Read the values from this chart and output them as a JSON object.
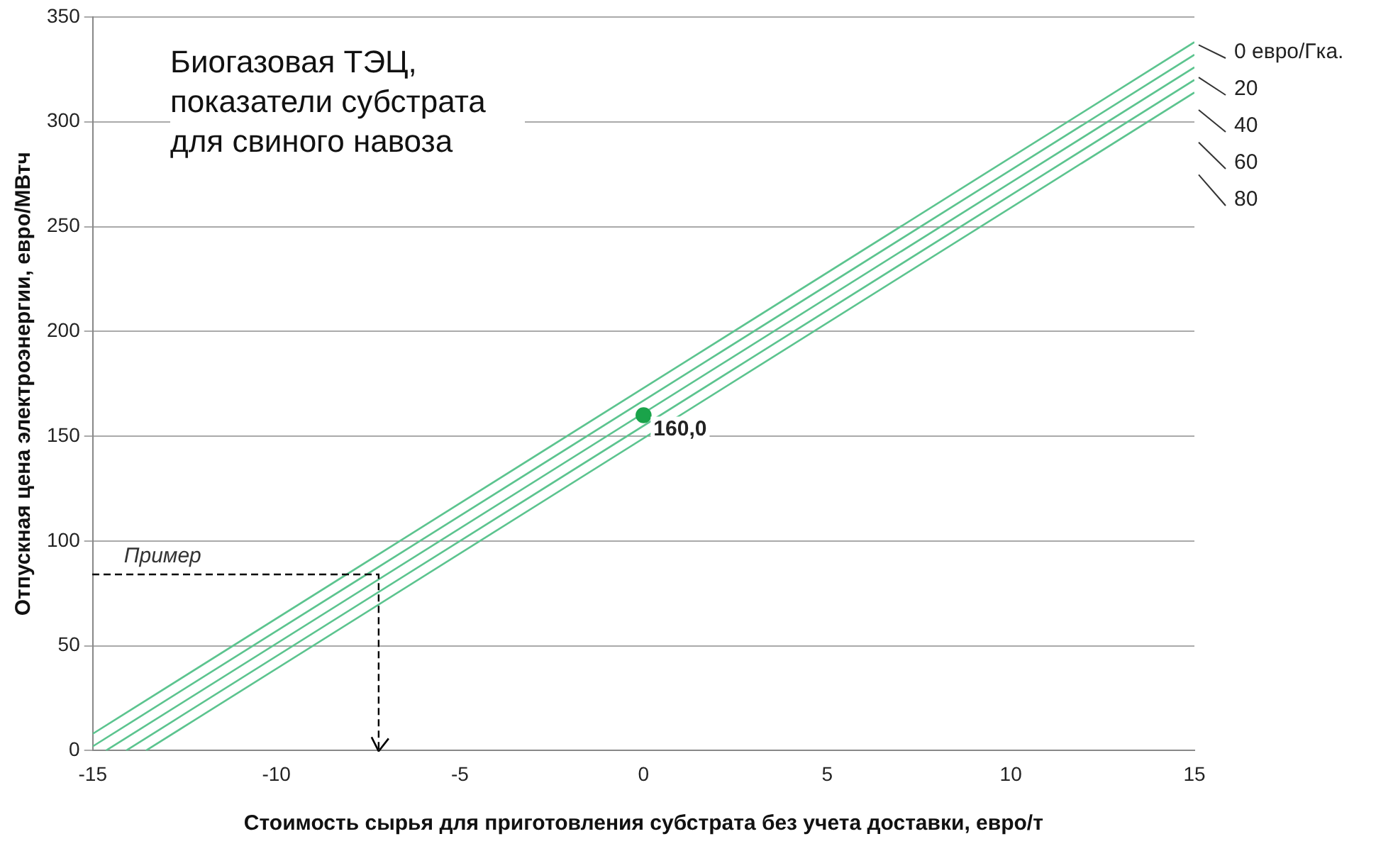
{
  "chart_data": {
    "type": "line",
    "title": "Биогазовая ТЭЦ, показатели субстрата для свиного навоза",
    "xlabel": "Стоимость сырья для приготовления субстрата без учета доставки, евро/т",
    "ylabel": "Отпускная цена электроэнергии, евро/МВтч",
    "xlim": [
      -15,
      15
    ],
    "ylim": [
      0,
      350
    ],
    "xticks": [
      -15,
      -10,
      -5,
      0,
      5,
      10,
      15
    ],
    "yticks": [
      0,
      50,
      100,
      150,
      200,
      250,
      300,
      350
    ],
    "grid": "y",
    "legend": false,
    "annotations": [
      "Пример"
    ],
    "series": [
      {
        "name": "0 евро/Гка.",
        "color": "#5cc48f",
        "x": [
          -15,
          15
        ],
        "values": [
          8,
          338
        ],
        "marker": "none",
        "line_style": "solid"
      },
      {
        "name": "20",
        "color": "#5cc48f",
        "x": [
          -15,
          15
        ],
        "values": [
          2,
          332
        ],
        "marker": "none",
        "line_style": "solid"
      },
      {
        "name": "40",
        "color": "#5cc48f",
        "x": [
          -14.64,
          15
        ],
        "values": [
          0,
          326
        ],
        "marker": "none",
        "line_style": "solid"
      },
      {
        "name": "60",
        "color": "#5cc48f",
        "x": [
          -14.09,
          15
        ],
        "values": [
          0,
          320
        ],
        "marker": "none",
        "line_style": "solid"
      },
      {
        "name": "80",
        "color": "#5cc48f",
        "x": [
          -13.55,
          15
        ],
        "values": [
          0,
          314
        ],
        "marker": "none",
        "line_style": "solid"
      },
      {
        "type": "scatter",
        "color": "#1aa34a",
        "x": [
          0
        ],
        "values": [
          160
        ],
        "marker": "circle",
        "value_labels": [
          "160,0"
        ]
      }
    ]
  }
}
